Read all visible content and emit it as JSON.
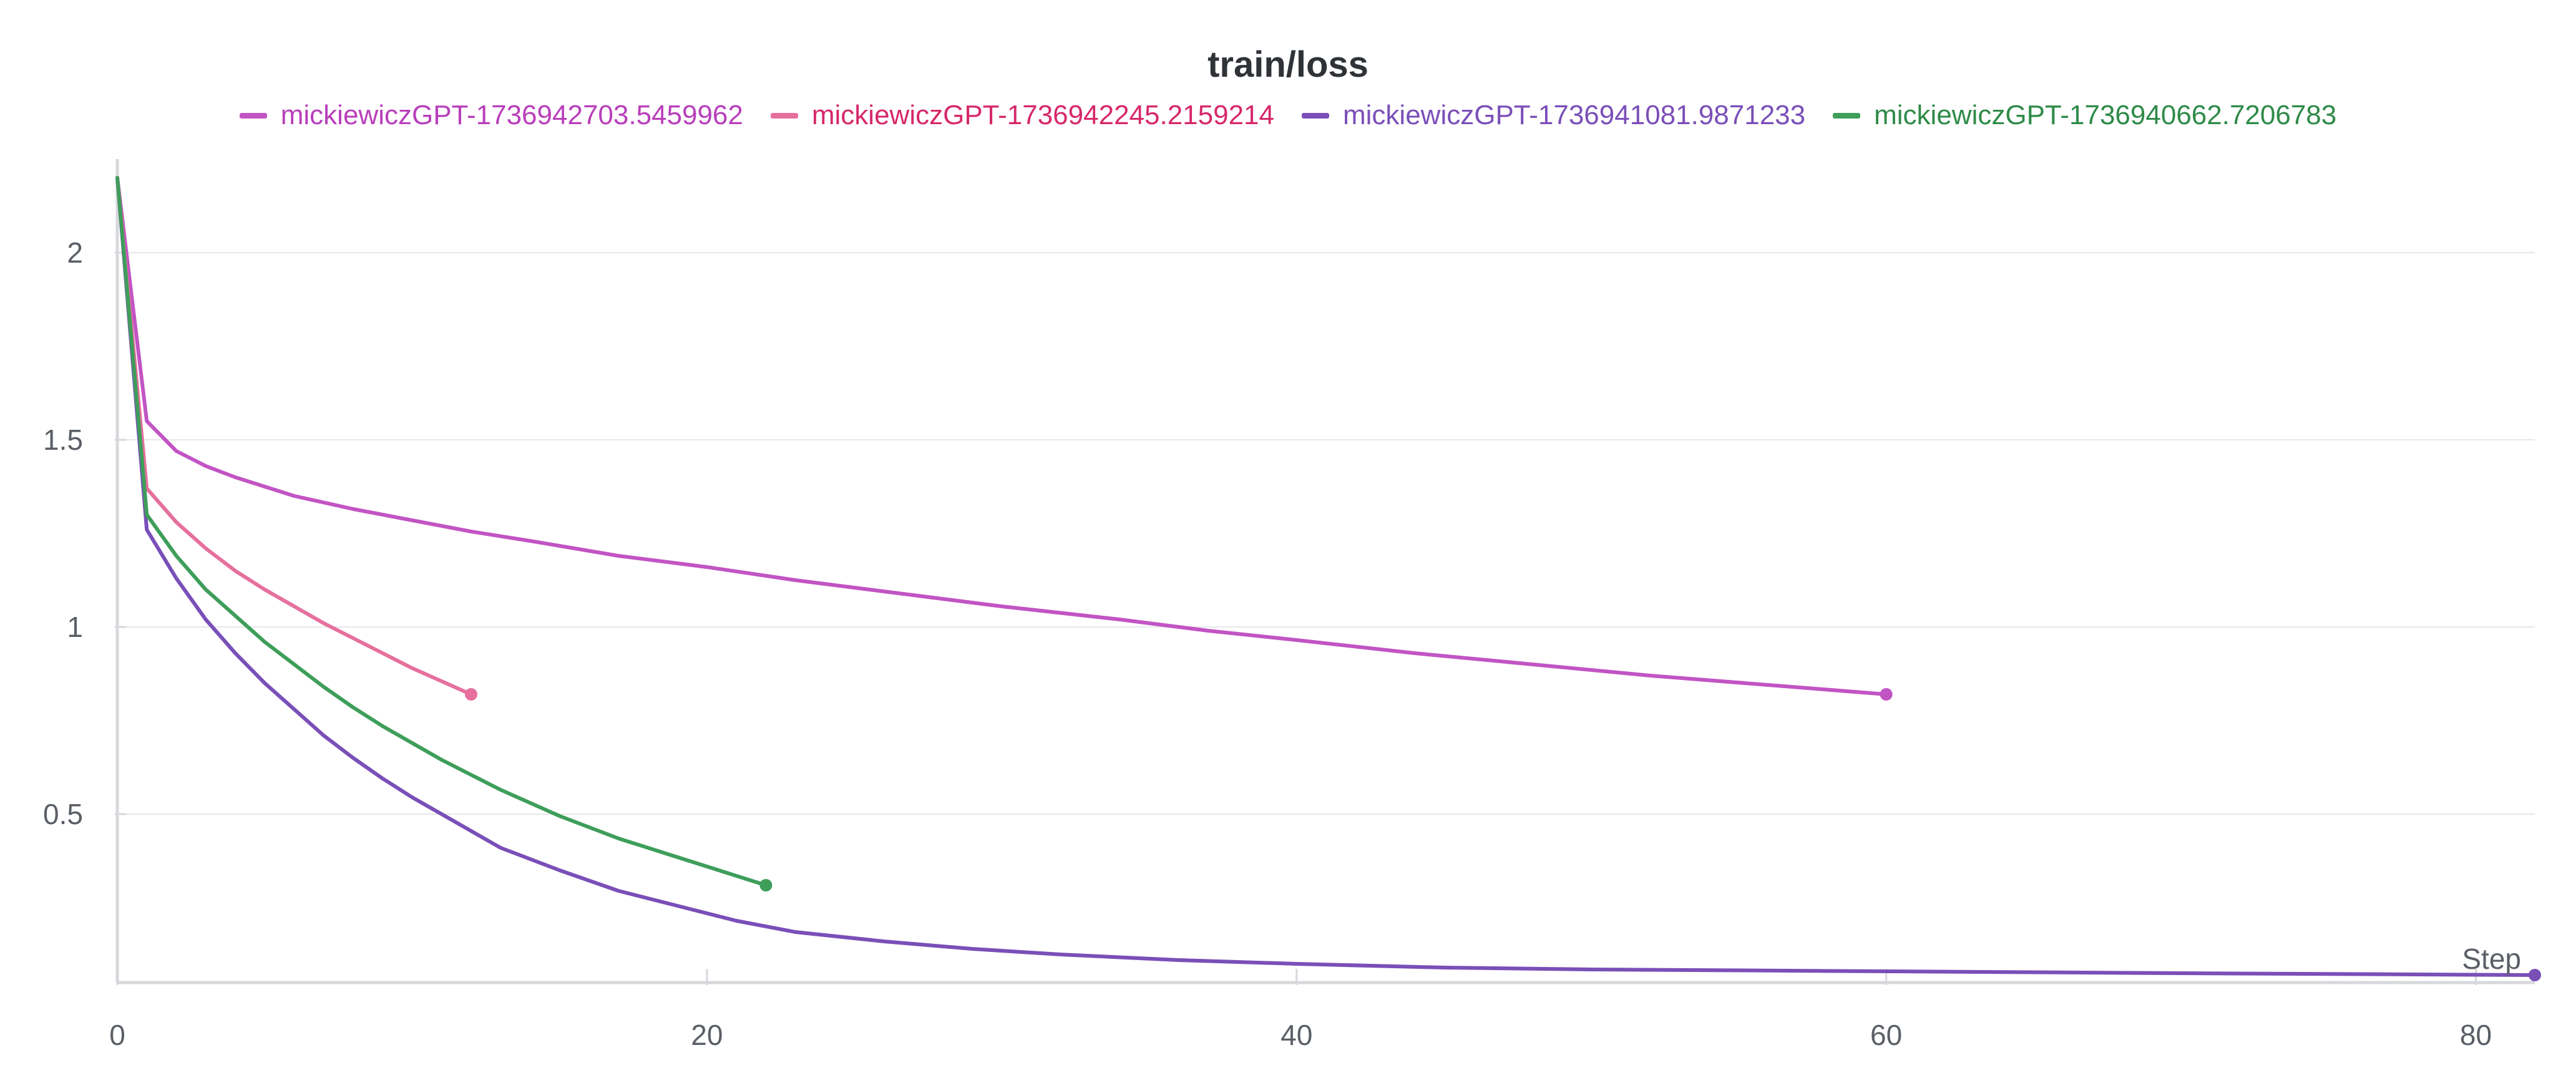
{
  "panel": {
    "title": "train/loss"
  },
  "chart_data": {
    "type": "line",
    "title": "train/loss",
    "xlabel": "Step",
    "ylabel": "",
    "xlim": [
      0,
      82
    ],
    "ylim": [
      0.05,
      2.25
    ],
    "x_ticks": [
      0,
      20,
      40,
      60,
      80
    ],
    "x_tick_labels": [
      "0",
      "20",
      "40",
      "60",
      "80"
    ],
    "y_ticks": [
      0.5,
      1,
      1.5,
      2
    ],
    "y_tick_labels": [
      "0.5",
      "1",
      "1.5",
      "2"
    ],
    "grid": "horizontal",
    "legend_placement": "top-center",
    "series": [
      {
        "name": "mickiewiczGPT-1736942703.5459962",
        "color": "#c254c4",
        "legend_text_color": "#b83eba",
        "points": [
          [
            0,
            2.2
          ],
          [
            1,
            1.55
          ],
          [
            2,
            1.47
          ],
          [
            3,
            1.43
          ],
          [
            4,
            1.4
          ],
          [
            5,
            1.375
          ],
          [
            6,
            1.35
          ],
          [
            8,
            1.315
          ],
          [
            10,
            1.285
          ],
          [
            12,
            1.255
          ],
          [
            14,
            1.23
          ],
          [
            17,
            1.19
          ],
          [
            20,
            1.16
          ],
          [
            23,
            1.125
          ],
          [
            27,
            1.085
          ],
          [
            30,
            1.055
          ],
          [
            34,
            1.02
          ],
          [
            37,
            0.99
          ],
          [
            40,
            0.965
          ],
          [
            44,
            0.93
          ],
          [
            48,
            0.9
          ],
          [
            52,
            0.87
          ],
          [
            56,
            0.845
          ],
          [
            60,
            0.82
          ]
        ]
      },
      {
        "name": "mickiewiczGPT-1736942245.2159214",
        "color": "#e6709d",
        "legend_text_color": "#d6286a",
        "points": [
          [
            0,
            2.2
          ],
          [
            1,
            1.37
          ],
          [
            2,
            1.28
          ],
          [
            3,
            1.21
          ],
          [
            4,
            1.15
          ],
          [
            5,
            1.1
          ],
          [
            6,
            1.055
          ],
          [
            7,
            1.01
          ],
          [
            8,
            0.97
          ],
          [
            9,
            0.93
          ],
          [
            10,
            0.89
          ],
          [
            11,
            0.855
          ],
          [
            12,
            0.82
          ]
        ]
      },
      {
        "name": "mickiewiczGPT-1736941081.9871233",
        "color": "#7a4fb8",
        "legend_text_color": "#7a4fb8",
        "points": [
          [
            0,
            2.2
          ],
          [
            1,
            1.26
          ],
          [
            2,
            1.13
          ],
          [
            3,
            1.02
          ],
          [
            4,
            0.93
          ],
          [
            5,
            0.85
          ],
          [
            6,
            0.78
          ],
          [
            7,
            0.71
          ],
          [
            8,
            0.65
          ],
          [
            9,
            0.595
          ],
          [
            10,
            0.545
          ],
          [
            11,
            0.5
          ],
          [
            12,
            0.455
          ],
          [
            13,
            0.41
          ],
          [
            15,
            0.35
          ],
          [
            17,
            0.295
          ],
          [
            19,
            0.255
          ],
          [
            21,
            0.215
          ],
          [
            23,
            0.185
          ],
          [
            26,
            0.16
          ],
          [
            29,
            0.14
          ],
          [
            32,
            0.125
          ],
          [
            36,
            0.11
          ],
          [
            40,
            0.1
          ],
          [
            45,
            0.09
          ],
          [
            50,
            0.085
          ],
          [
            60,
            0.08
          ],
          [
            70,
            0.075
          ],
          [
            82,
            0.07
          ]
        ]
      },
      {
        "name": "mickiewiczGPT-1736940662.7206783",
        "color": "#3e9e5a",
        "legend_text_color": "#2f8a48",
        "points": [
          [
            0,
            2.2
          ],
          [
            1,
            1.3
          ],
          [
            2,
            1.19
          ],
          [
            3,
            1.1
          ],
          [
            4,
            1.03
          ],
          [
            5,
            0.96
          ],
          [
            6,
            0.9
          ],
          [
            7,
            0.84
          ],
          [
            8,
            0.785
          ],
          [
            9,
            0.735
          ],
          [
            10,
            0.69
          ],
          [
            11,
            0.645
          ],
          [
            12,
            0.605
          ],
          [
            13,
            0.565
          ],
          [
            15,
            0.495
          ],
          [
            17,
            0.435
          ],
          [
            19,
            0.385
          ],
          [
            20,
            0.36
          ],
          [
            21,
            0.335
          ],
          [
            22,
            0.31
          ]
        ]
      }
    ]
  }
}
